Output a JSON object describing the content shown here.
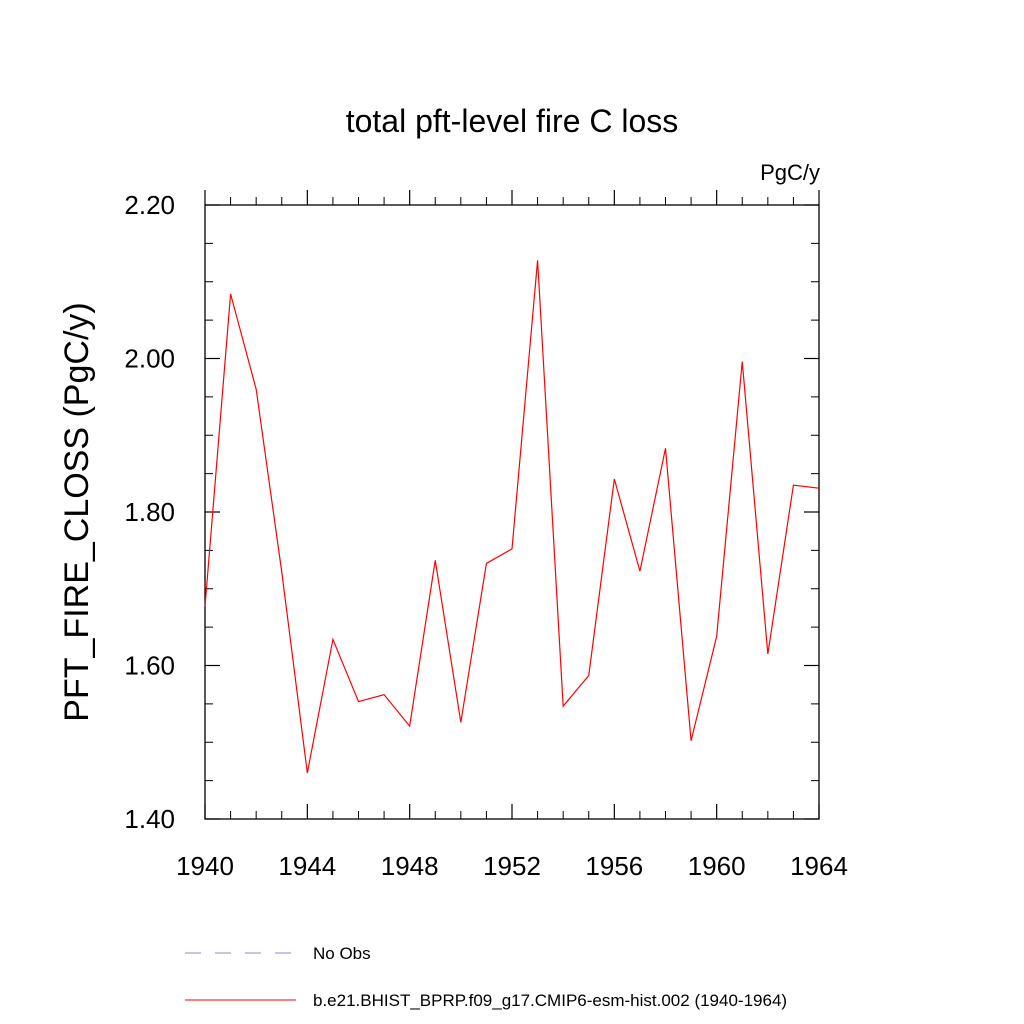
{
  "chart_data": {
    "type": "line",
    "title": "total pft-level fire C loss",
    "units_label": "PgC/y",
    "ylabel": "PFT_FIRE_CLOSS  (PgC/y)",
    "xlabel": "",
    "xlim": [
      1940,
      1964
    ],
    "ylim": [
      1.4,
      2.2
    ],
    "x_ticks": [
      1940,
      1944,
      1948,
      1952,
      1956,
      1960,
      1964
    ],
    "x_tick_labels": [
      "1940",
      "1944",
      "1948",
      "1952",
      "1956",
      "1960",
      "1964"
    ],
    "y_ticks": [
      1.4,
      1.6,
      1.8,
      2.0,
      2.2
    ],
    "y_tick_labels": [
      "1.40",
      "1.60",
      "1.80",
      "2.00",
      "2.20"
    ],
    "grid": false,
    "x": [
      1940,
      1941,
      1942,
      1943,
      1944,
      1945,
      1946,
      1947,
      1948,
      1949,
      1950,
      1951,
      1952,
      1953,
      1954,
      1955,
      1956,
      1957,
      1958,
      1959,
      1960,
      1961,
      1962,
      1963,
      1964
    ],
    "series": [
      {
        "name": "b.e21.BHIST_BPRP.f09_g17.CMIP6-esm-hist.002 (1940-1964)",
        "color": "#ff0000",
        "dash": "solid",
        "values": [
          1.677,
          2.084,
          1.96,
          1.722,
          1.46,
          1.634,
          1.553,
          1.562,
          1.521,
          1.737,
          1.526,
          1.733,
          1.752,
          2.128,
          1.547,
          1.587,
          1.843,
          1.723,
          1.883,
          1.502,
          1.638,
          1.996,
          1.615,
          1.835,
          1.831
        ]
      }
    ],
    "legend": {
      "placement": "bottom",
      "entries": [
        {
          "label": "No Obs",
          "color": "#8a8ad8",
          "dash": "dashed"
        },
        {
          "label": "b.e21.BHIST_BPRP.f09_g17.CMIP6-esm-hist.002 (1940-1964)",
          "color": "#ff0000",
          "dash": "solid"
        }
      ]
    }
  }
}
